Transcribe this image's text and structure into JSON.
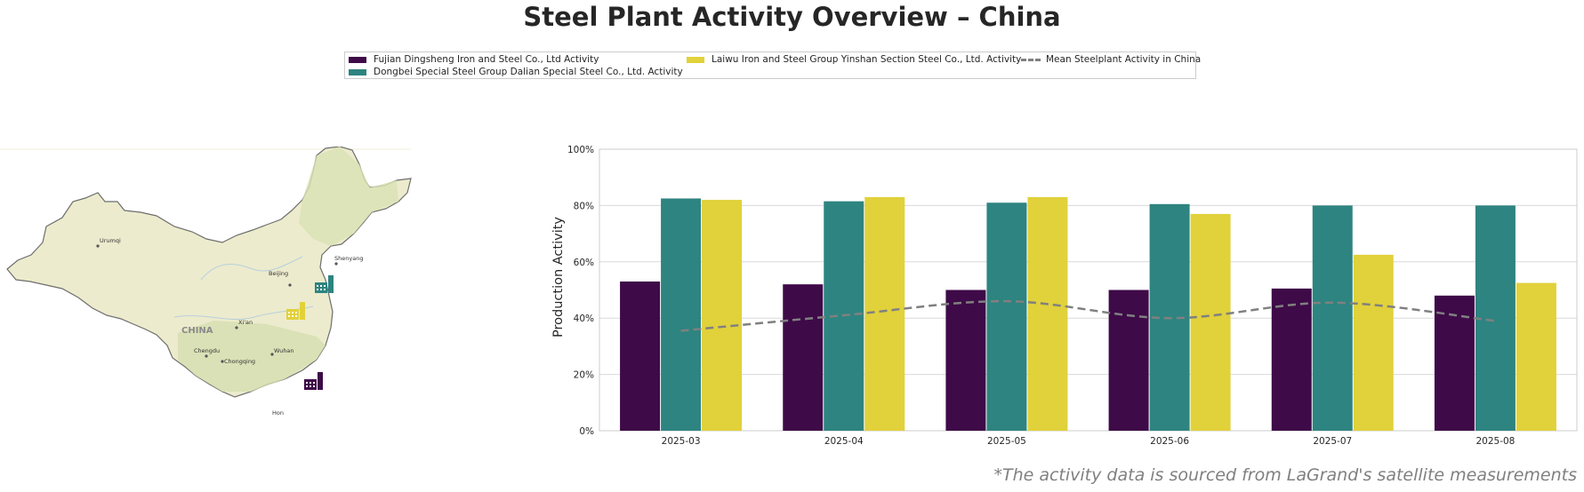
{
  "title": "Steel Plant Activity Overview – China",
  "footnote": "*The activity data is sourced from LaGrand's satellite measurements",
  "colors": {
    "fujian": "#3e0a48",
    "dongbei": "#2e8480",
    "laiwu": "#e1d13b",
    "mean": "#808080"
  },
  "legend": [
    {
      "label": "Fujian Dingsheng Iron and Steel Co., Ltd Activity"
    },
    {
      "label": "Dongbei Special Steel Group Dalian Special Steel Co., Ltd. Activity"
    },
    {
      "label": "Laiwu Iron and Steel Group Yinshan Section Steel Co., Ltd. Activity"
    },
    {
      "label": "Mean Steelplant Activity in China"
    }
  ],
  "map": {
    "country_label": "CHINA",
    "cities": [
      "Urumqi",
      "Beijing",
      "Shenyang",
      "Xi'an",
      "Chengdu",
      "Chongqing",
      "Wuhan",
      "Hon"
    ]
  },
  "chart_data": {
    "type": "bar",
    "categories": [
      "2025-03",
      "2025-04",
      "2025-05",
      "2025-06",
      "2025-07",
      "2025-08"
    ],
    "series": [
      {
        "name": "Fujian Dingsheng Iron and Steel Co., Ltd Activity",
        "values": [
          53,
          52,
          50,
          50,
          50.5,
          48
        ]
      },
      {
        "name": "Dongbei Special Steel Group Dalian Special Steel Co., Ltd. Activity",
        "values": [
          82.5,
          81.5,
          81,
          80.5,
          80,
          80
        ]
      },
      {
        "name": "Laiwu Iron and Steel Group Yinshan Section Steel Co., Ltd. Activity",
        "values": [
          82,
          83,
          83,
          77,
          62.5,
          52.5
        ]
      }
    ],
    "line": {
      "name": "Mean Steelplant Activity in China",
      "values": [
        35.5,
        41,
        46,
        40,
        45.5,
        39
      ]
    },
    "ylabel": "Production Activity",
    "yticks": [
      "0%",
      "20%",
      "40%",
      "60%",
      "80%",
      "100%"
    ],
    "ylim": [
      0,
      100
    ],
    "grid": true
  }
}
